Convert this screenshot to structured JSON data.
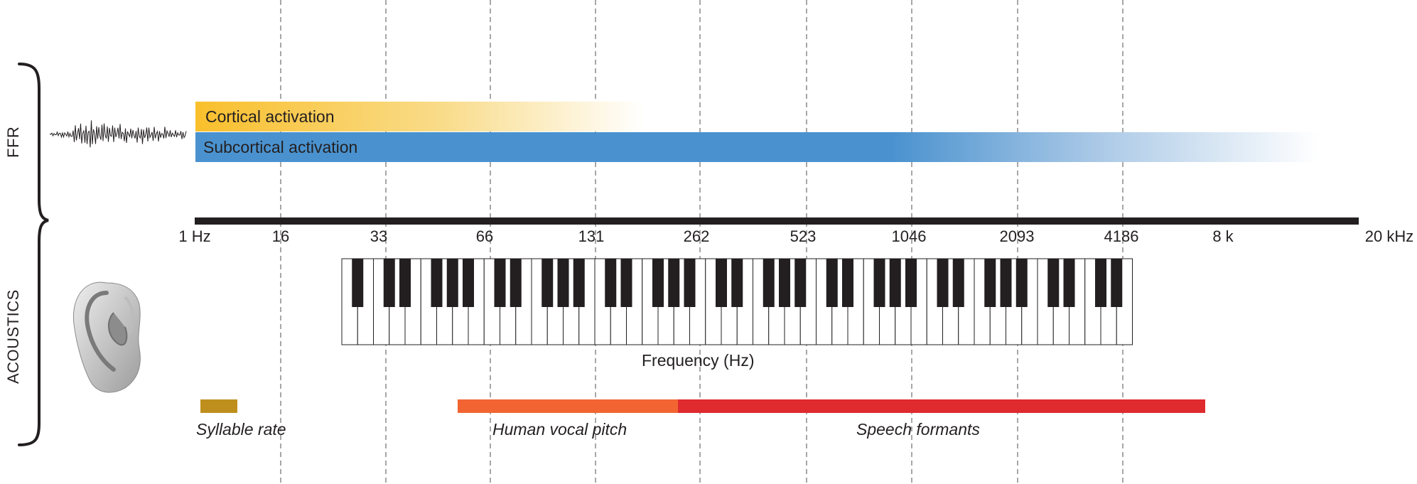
{
  "sections": {
    "ffr": "FFR",
    "acoustics": "ACOUSTICS"
  },
  "activation_bars": [
    {
      "label": "Cortical activation",
      "color": "#f9bf2c"
    },
    {
      "label": "Subcortical activation",
      "color": "#4a92cf"
    }
  ],
  "axis": {
    "tick_labels": [
      "1 Hz",
      "16",
      "33",
      "66",
      "131",
      "262",
      "523",
      "1046",
      "2093",
      "4186",
      "8 k",
      "20 kHz"
    ],
    "title": "Frequency (Hz)"
  },
  "ranges": [
    {
      "label": "Syllable rate",
      "color": "#bf8f1e"
    },
    {
      "label": "Human vocal pitch",
      "color": "#f26532"
    },
    {
      "label": "Speech formants",
      "color": "#df2a2e"
    }
  ],
  "icons": [
    "waveform-icon",
    "ear-icon",
    "piano-keyboard-icon",
    "curly-brace-icon"
  ]
}
